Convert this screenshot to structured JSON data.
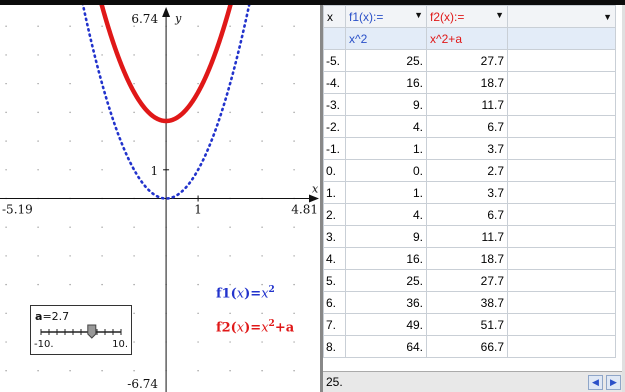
{
  "graph": {
    "ymax": "6.74",
    "ymin": "-6.74",
    "xmin": "-5.19",
    "xmax": "4.81",
    "tick_x": "1",
    "tick_y": "1",
    "axis_x": "x",
    "axis_y": "y",
    "f1_label": {
      "name": "f1",
      "arg": "x",
      "eq": "=",
      "var": "x",
      "exp": "2",
      "suffix": ""
    },
    "f2_label": {
      "name": "f2",
      "arg": "x",
      "eq": "=",
      "var": "x",
      "exp": "2",
      "suffix": "+a"
    },
    "colors": {
      "f1": "#2233cc",
      "f2": "#e01818"
    }
  },
  "slider": {
    "var": "a",
    "value_text": "=2.7",
    "min": "-10.",
    "max": "10.",
    "value": 2.7,
    "range": [
      -10,
      10
    ]
  },
  "sheet": {
    "col_x_header": "x",
    "col_f1_header": "f1(x):=",
    "col_f2_header": "f2(x):=",
    "col_f1_formula": "x^2",
    "col_f2_formula": "x^2+a",
    "rows": [
      {
        "x": "-5.",
        "f1": "25.",
        "f2": "27.7"
      },
      {
        "x": "-4.",
        "f1": "16.",
        "f2": "18.7"
      },
      {
        "x": "-3.",
        "f1": "9.",
        "f2": "11.7"
      },
      {
        "x": "-2.",
        "f1": "4.",
        "f2": "6.7"
      },
      {
        "x": "-1.",
        "f1": "1.",
        "f2": "3.7"
      },
      {
        "x": "0.",
        "f1": "0.",
        "f2": "2.7"
      },
      {
        "x": "1.",
        "f1": "1.",
        "f2": "3.7"
      },
      {
        "x": "2.",
        "f1": "4.",
        "f2": "6.7"
      },
      {
        "x": "3.",
        "f1": "9.",
        "f2": "11.7"
      },
      {
        "x": "4.",
        "f1": "16.",
        "f2": "18.7"
      },
      {
        "x": "5.",
        "f1": "25.",
        "f2": "27.7"
      },
      {
        "x": "6.",
        "f1": "36.",
        "f2": "38.7"
      },
      {
        "x": "7.",
        "f1": "49.",
        "f2": "51.7"
      },
      {
        "x": "8.",
        "f1": "64.",
        "f2": "66.7"
      }
    ],
    "entry_value": "25.",
    "btn_left_icon": "triangle-left-icon",
    "btn_right_icon": "triangle-right-icon"
  }
}
